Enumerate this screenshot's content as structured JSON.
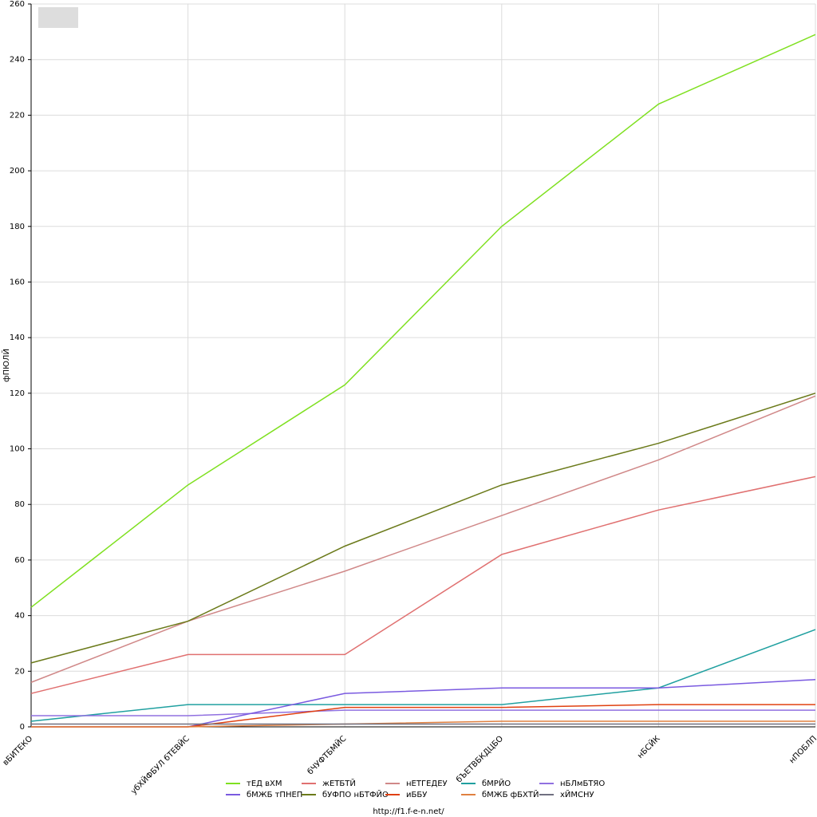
{
  "chart_data": {
    "type": "line",
    "y_label": "фПЮЛЙ",
    "footer": "http://f1.f-e-n.net/",
    "categories": [
      "вБИТЕКО",
      "убХЙФБУЛ бТЕВЙС",
      "бЧУФТБМЙС",
      "бЪЕТВБКДЦБО",
      "нБСЙК",
      "нПОБЛП"
    ],
    "ylim": [
      0,
      260
    ],
    "yticks": [
      0,
      20,
      40,
      60,
      80,
      100,
      120,
      140,
      160,
      180,
      200,
      220,
      240,
      260
    ],
    "grid": true,
    "series": [
      {
        "name": "тЕД вХМ",
        "color": "#7fe020",
        "values": [
          43,
          87,
          123,
          180,
          224,
          249
        ]
      },
      {
        "name": "жЕТБТЙ",
        "color": "#e07070",
        "values": [
          12,
          26,
          26,
          62,
          78,
          90
        ]
      },
      {
        "name": "нЕТГЕДЕУ",
        "color": "#d08888",
        "values": [
          16,
          38,
          56,
          76,
          96,
          119
        ]
      },
      {
        "name": "бМРЙО",
        "color": "#20a0a0",
        "values": [
          2,
          8,
          8,
          8,
          14,
          35
        ]
      },
      {
        "name": "нБЛмБТЯО",
        "color": "#9070e0",
        "values": [
          4,
          4,
          6,
          6,
          6,
          6
        ]
      },
      {
        "name": "бМЖБ тПНЕП",
        "color": "#7a5ae0",
        "values": [
          0,
          0,
          12,
          14,
          14,
          17
        ]
      },
      {
        "name": "бУФПО нБТФЙО",
        "color": "#6b7a1a",
        "values": [
          23,
          38,
          65,
          87,
          102,
          120
        ]
      },
      {
        "name": "иББУ",
        "color": "#e04010",
        "values": [
          0,
          0,
          7,
          7,
          8,
          8
        ]
      },
      {
        "name": "бМЖБ фБХТЙ",
        "color": "#e08040",
        "values": [
          0,
          0,
          1,
          2,
          2,
          2
        ]
      },
      {
        "name": "хЙМСНУ",
        "color": "#707080",
        "values": [
          1,
          1,
          1,
          1,
          1,
          1
        ]
      }
    ]
  }
}
